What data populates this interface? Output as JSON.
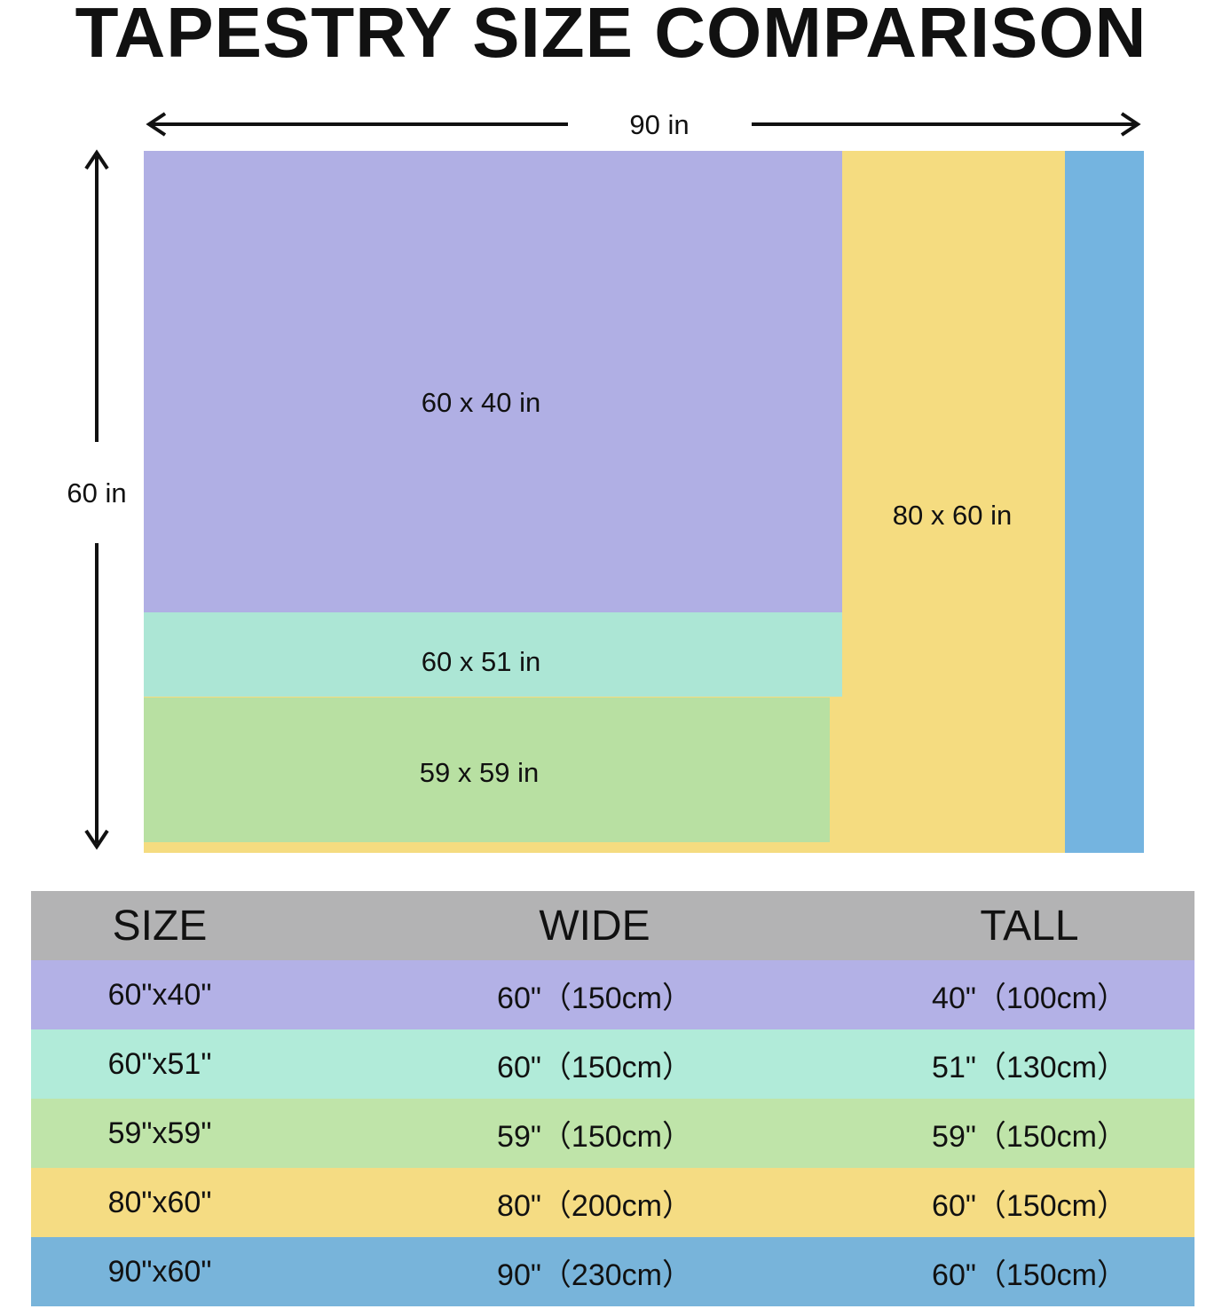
{
  "title": "TAPESTRY SIZE COMPARISON",
  "chart_data": {
    "type": "table",
    "width_label": "90 in",
    "height_label": "60 in",
    "rectangles": [
      {
        "label": "80 x 60 in",
        "w": 80,
        "h": 60,
        "color": "#f5dc80"
      },
      {
        "label": "60 x 40 in",
        "w": 60,
        "h": 40,
        "color": "#b0afe4"
      },
      {
        "label": "60 x 51 in",
        "w": 60,
        "h": 51,
        "color": "#ace6d5"
      },
      {
        "label": "59 x 59 in",
        "w": 59,
        "h": 59,
        "color": "#b8e0a2"
      }
    ],
    "outer": {
      "w": 90,
      "h": 60,
      "color": "#74b4e0"
    },
    "table": {
      "headers": [
        "SIZE",
        "WIDE",
        "TALL"
      ],
      "header_color": "#b3b3b4",
      "rows": [
        {
          "size": "60\"x40\"",
          "wide": "60\"（150cm）",
          "tall": "40\"（100cm）",
          "color": "#b3b1e6"
        },
        {
          "size": "60\"x51\"",
          "wide": "60\"（150cm）",
          "tall": "51\"（130cm）",
          "color": "#b1ebd9"
        },
        {
          "size": "59\"x59\"",
          "wide": "59\"（150cm）",
          "tall": "59\"（150cm）",
          "color": "#bfe4a9"
        },
        {
          "size": "80\"x60\"",
          "wide": "80\"（200cm）",
          "tall": "60\"（150cm）",
          "color": "#f5dc83"
        },
        {
          "size": "90\"x60\"",
          "wide": "90\"（230cm）",
          "tall": "60\"（150cm）",
          "color": "#78b4da"
        }
      ]
    }
  }
}
